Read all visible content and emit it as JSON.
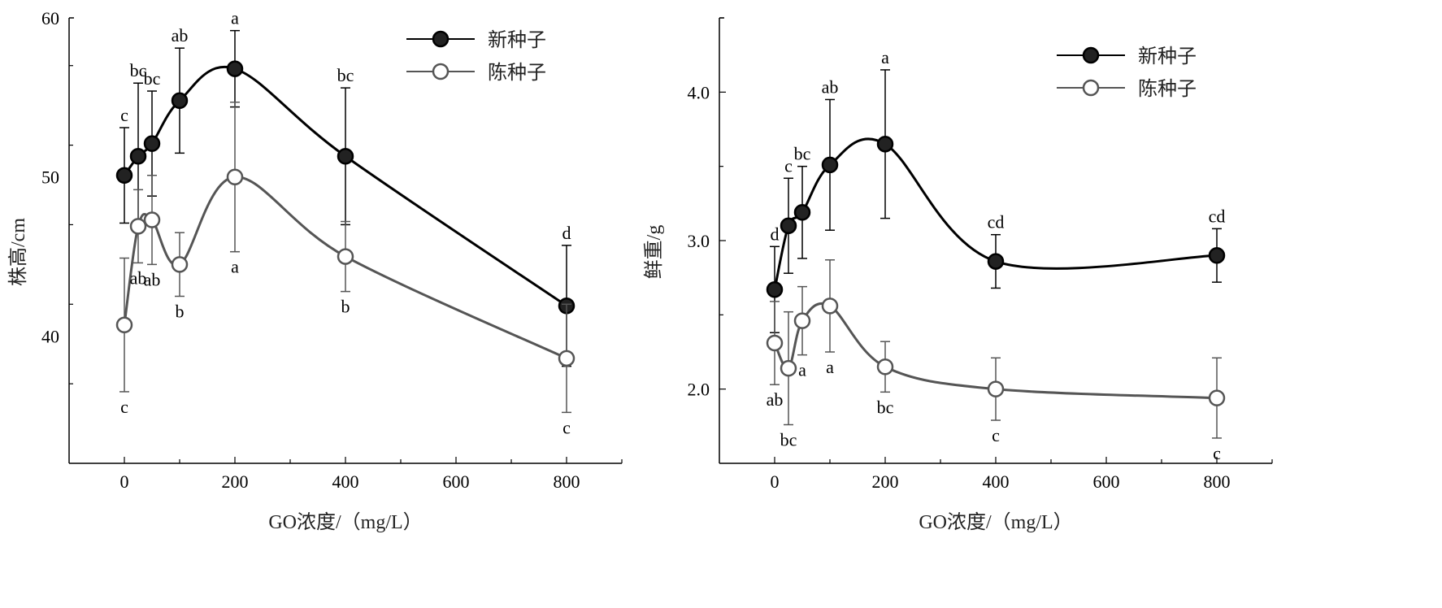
{
  "chart_data": [
    {
      "type": "line",
      "xlabel": "GO浓度/（mg/L）",
      "ylabel": "株高/cm",
      "xlim": [
        -100,
        900
      ],
      "ylim": [
        32,
        60
      ],
      "xticks": [
        0,
        200,
        400,
        600,
        800
      ],
      "yticks": [
        40,
        50,
        60
      ],
      "ytick_labels": [
        "40",
        "50",
        "60"
      ],
      "xtick_labels": [
        "0",
        "200",
        "400",
        "600",
        "800"
      ],
      "legend_position": "top-right",
      "x": [
        0,
        25,
        50,
        100,
        200,
        400,
        800
      ],
      "series": [
        {
          "name": "新种子",
          "color": "#000000",
          "fill": "#222222",
          "values": [
            50.1,
            51.3,
            52.1,
            54.8,
            56.8,
            51.3,
            41.9
          ],
          "errors": [
            3.0,
            4.6,
            3.3,
            3.3,
            2.4,
            4.3,
            3.8
          ],
          "letters": [
            "c",
            "bc",
            "bc",
            "ab",
            "a",
            "bc",
            "d"
          ],
          "letter_side": "above"
        },
        {
          "name": "陈种子",
          "color": "#555555",
          "fill": "#ffffff",
          "values": [
            40.7,
            46.9,
            47.3,
            44.5,
            50.0,
            45.0,
            38.6
          ],
          "errors": [
            4.2,
            2.3,
            2.8,
            2.0,
            4.7,
            2.2,
            3.4
          ],
          "letters": [
            "c",
            "ab",
            "ab",
            "b",
            "a",
            "b",
            "c"
          ],
          "letter_side": "below"
        }
      ]
    },
    {
      "type": "line",
      "xlabel": "GO浓度/（mg/L）",
      "ylabel": "鲜重/g",
      "xlim": [
        -100,
        900
      ],
      "ylim": [
        1.5,
        4.5
      ],
      "xticks": [
        0,
        200,
        400,
        600,
        800
      ],
      "yticks": [
        2.0,
        3.0,
        4.0
      ],
      "ytick_labels": [
        "2.0",
        "3.0",
        "4.0"
      ],
      "xtick_labels": [
        "0",
        "200",
        "400",
        "600",
        "800"
      ],
      "legend_position": "top-right",
      "x": [
        0,
        25,
        50,
        100,
        200,
        400,
        800
      ],
      "series": [
        {
          "name": "新种子",
          "color": "#000000",
          "fill": "#222222",
          "values": [
            2.67,
            3.1,
            3.19,
            3.51,
            3.65,
            2.86,
            2.9
          ],
          "errors": [
            0.29,
            0.32,
            0.31,
            0.44,
            0.5,
            0.18,
            0.18
          ],
          "letters": [
            "d",
            "c",
            "bc",
            "ab",
            "a",
            "cd",
            "cd"
          ],
          "letter_side": "above"
        },
        {
          "name": "陈种子",
          "color": "#555555",
          "fill": "#ffffff",
          "values": [
            2.31,
            2.14,
            2.46,
            2.56,
            2.15,
            2.0,
            1.94
          ],
          "errors": [
            0.28,
            0.38,
            0.23,
            0.31,
            0.17,
            0.21,
            0.27
          ],
          "letters": [
            "ab",
            "bc",
            "a",
            "a",
            "bc",
            "c",
            "c"
          ],
          "letter_side": "below"
        }
      ]
    }
  ]
}
